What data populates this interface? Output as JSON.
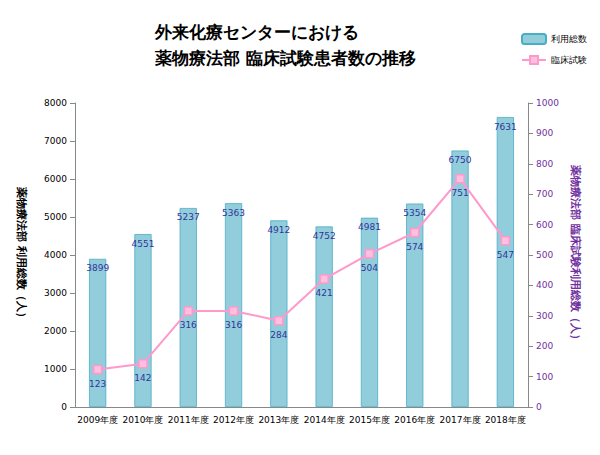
{
  "chart_data": {
    "type": "bar",
    "title": "外来化療センターにおける\n薬物療法部 臨床試験患者数の推移",
    "categories": [
      "2009年度",
      "2010年度",
      "2011年度",
      "2012年度",
      "2013年度",
      "2014年度",
      "2015年度",
      "2016年度",
      "2017年度",
      "2018年度"
    ],
    "series": [
      {
        "name": "利用総数",
        "type": "bar",
        "color": "#92CDDC",
        "values": [
          3899,
          4551,
          5237,
          5363,
          4912,
          4752,
          4981,
          5354,
          6750,
          7631
        ]
      },
      {
        "name": "臨床試験",
        "type": "line",
        "axis": "y2",
        "color": "#FF99CC",
        "marker": "square",
        "line_style": "solid",
        "values": [
          123,
          142,
          316,
          316,
          284,
          421,
          504,
          574,
          751,
          547
        ]
      }
    ],
    "ylabel": "薬物療法部 利用総数（人）",
    "y2label": "薬物療法部 臨床試験利用総数（人）",
    "ylim": [
      0,
      8000
    ],
    "yticks": [
      0,
      1000,
      2000,
      3000,
      4000,
      5000,
      6000,
      7000,
      8000
    ],
    "y2lim": [
      0,
      1000
    ],
    "y2ticks": [
      0,
      100,
      200,
      300,
      400,
      500,
      600,
      700,
      800,
      900,
      1000
    ],
    "grid": false,
    "legend": "upper right",
    "data_labels": true
  }
}
